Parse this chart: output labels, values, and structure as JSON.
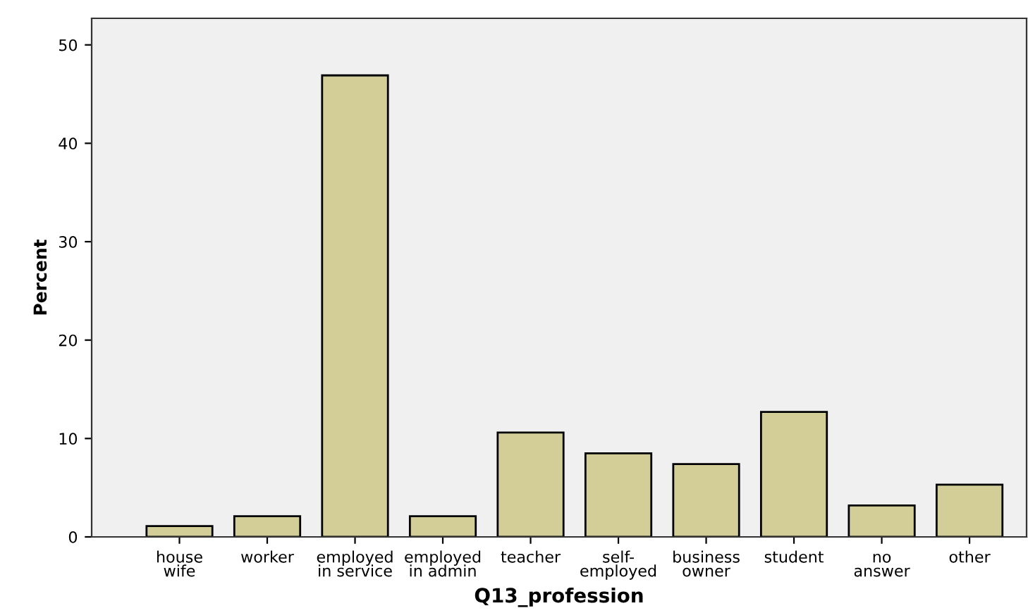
{
  "chart_data": {
    "type": "bar",
    "xlabel": "Q13_profession",
    "ylabel": "Percent",
    "categories": [
      "house\nwife",
      "worker",
      "employed\nin service",
      "employed\nin admin",
      "teacher",
      "self-\nemployed",
      "business\nowner",
      "student",
      "no\nanswer",
      "other"
    ],
    "values": [
      1.1,
      2.1,
      46.9,
      2.1,
      10.6,
      8.5,
      7.4,
      12.7,
      3.2,
      5.3
    ],
    "color": "#d3ce97",
    "ylim": [
      0,
      52.7
    ],
    "yticks": [
      0,
      10,
      20,
      30,
      40,
      50
    ],
    "grid": false
  }
}
